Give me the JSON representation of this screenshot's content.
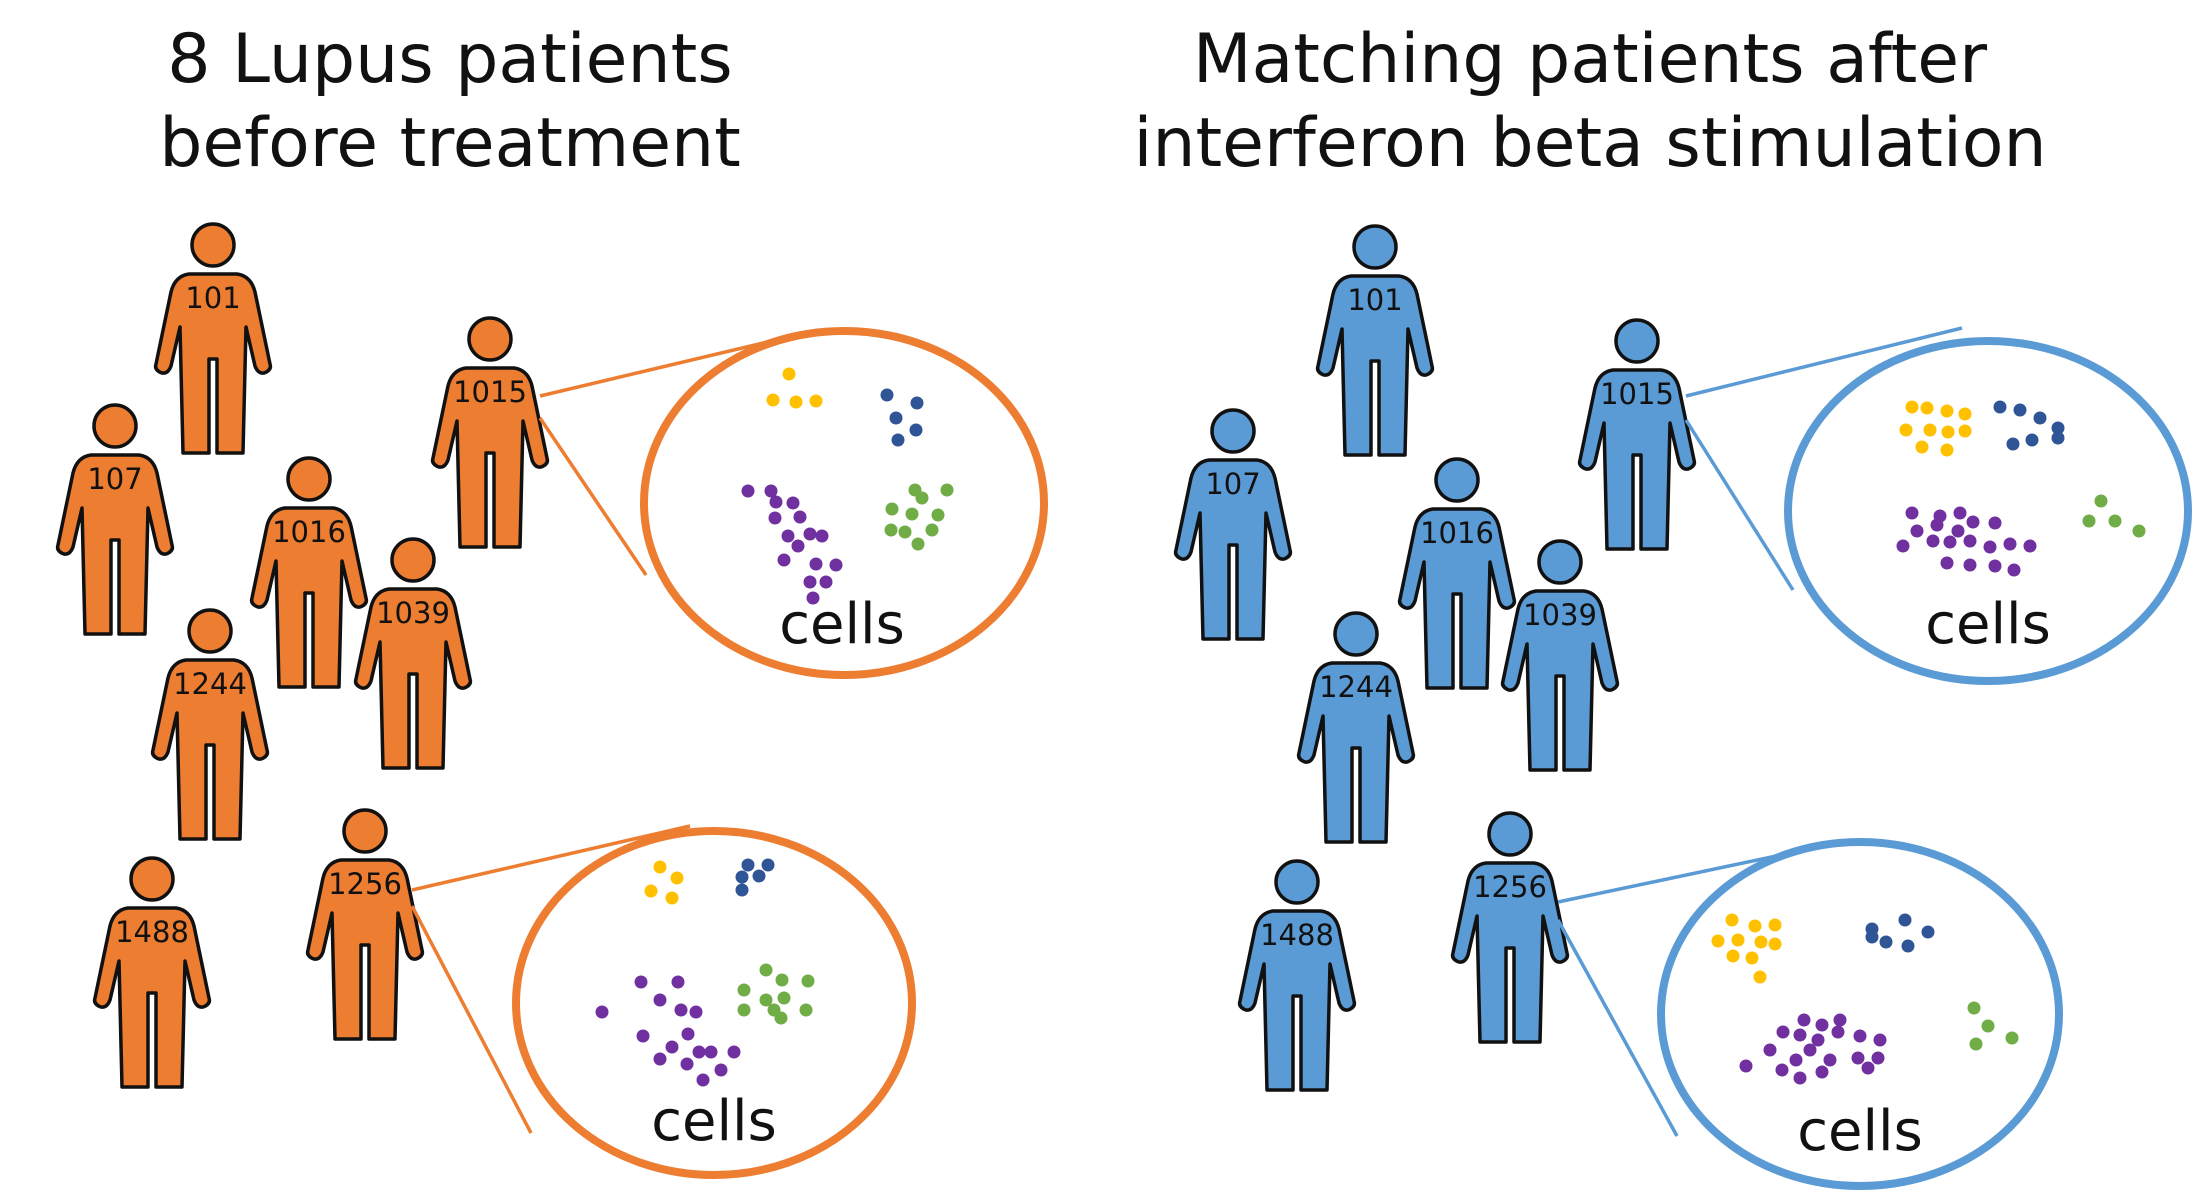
{
  "panels": [
    {
      "title_lines": [
        "8 Lupus patients",
        "before treatment"
      ],
      "color": "#ED7D31",
      "patients": [
        "101",
        "107",
        "1016",
        "1015",
        "1039",
        "1244",
        "1488",
        "1256"
      ],
      "callouts": [
        {
          "patient": "1015",
          "label": "cells"
        },
        {
          "patient": "1256",
          "label": "cells"
        }
      ]
    },
    {
      "title_lines": [
        "Matching patients after",
        "interferon beta stimulation"
      ],
      "color": "#5B9BD5",
      "patients": [
        "101",
        "107",
        "1016",
        "1015",
        "1039",
        "1244",
        "1488",
        "1256"
      ],
      "callouts": [
        {
          "patient": "1015",
          "label": "cells"
        },
        {
          "patient": "1256",
          "label": "cells"
        }
      ]
    }
  ],
  "cell_type_colors": {
    "yellow": "#FFC000",
    "blue": "#2F5597",
    "purple": "#7030A0",
    "green": "#70AD47"
  }
}
